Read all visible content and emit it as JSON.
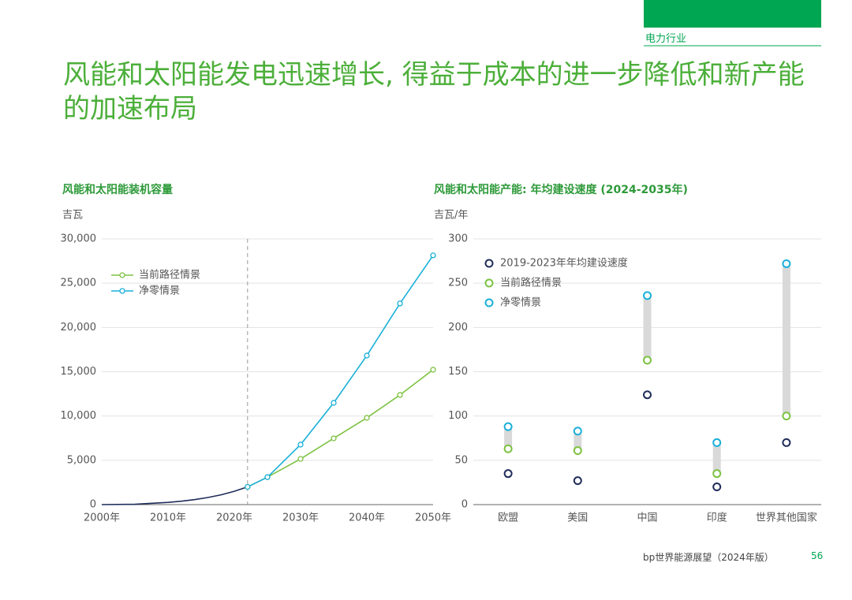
{
  "section": "电力行业",
  "title": "风能和太阳能发电迅速增长, 得益于成本的进一步降低和新产能的加速布局",
  "footer": "bp世界能源展望（2024年版）",
  "page_number": 56,
  "chart_data": [
    {
      "type": "line",
      "title": "风能和太阳能装机容量",
      "y_label": "吉瓦",
      "x": [
        2000,
        2005,
        2010,
        2012,
        2014,
        2016,
        2018,
        2020,
        2022,
        2025,
        2030,
        2035,
        2040,
        2045,
        2050
      ],
      "xlim": [
        2000,
        2050
      ],
      "xticks": [
        {
          "value": 2000,
          "label": "2000年"
        },
        {
          "value": 2010,
          "label": "2010年"
        },
        {
          "value": 2020,
          "label": "2020年"
        },
        {
          "value": 2030,
          "label": "2030年"
        },
        {
          "value": 2040,
          "label": "2040年"
        },
        {
          "value": 2050,
          "label": "2050年"
        }
      ],
      "ylim": [
        0,
        30000
      ],
      "yticks": [
        0,
        {
          "value": 5000,
          "label": "5,000"
        },
        {
          "value": 10000,
          "label": "10,000"
        },
        {
          "value": 15000,
          "label": "15,000"
        },
        {
          "value": 20000,
          "label": "20,000"
        },
        {
          "value": 25000,
          "label": "25,000"
        },
        {
          "value": 30000,
          "label": "30,000"
        }
      ],
      "vline": 2022,
      "grid": true,
      "legend": "upper left",
      "series": [
        {
          "color": "#1f2d5a",
          "markers": false,
          "values": [
            0,
            40,
            250,
            380,
            560,
            800,
            1100,
            1500,
            2000,
            null,
            null,
            null,
            null,
            null,
            null
          ]
        },
        {
          "name": "当前路径情景",
          "color": "#7dc242",
          "markers": true,
          "values": [
            null,
            null,
            null,
            null,
            null,
            null,
            null,
            null,
            2000,
            3100,
            5160,
            7480,
            9800,
            12380,
            15230
          ]
        },
        {
          "name": "净零情景",
          "color": "#1ab0d8",
          "markers": true,
          "values": [
            null,
            null,
            null,
            null,
            null,
            null,
            null,
            null,
            2000,
            3100,
            6770,
            11490,
            16830,
            22710,
            28140
          ]
        }
      ]
    },
    {
      "type": "dot_range",
      "title": "风能和太阳能产能: 年均建设速度 (2024-2035年)",
      "y_label": "吉瓦/年",
      "categories": [
        "欧盟",
        "美国",
        "中国",
        "印度",
        "世界其他国家"
      ],
      "ylim": [
        0,
        300
      ],
      "yticks": [
        0,
        50,
        100,
        150,
        200,
        250,
        300
      ],
      "grid": true,
      "legend": "upper left",
      "range_color": "#d9d9d9",
      "series": [
        {
          "name": "2019-2023年年均建设速度",
          "color": "#1f2d5a",
          "values": [
            35,
            27,
            124,
            20,
            70
          ]
        },
        {
          "name": "当前路径情景",
          "color": "#7dc242",
          "values": [
            63,
            61,
            163,
            35,
            100
          ]
        },
        {
          "name": "净零情景",
          "color": "#1ab0d8",
          "values": [
            88,
            83,
            236,
            70,
            272
          ]
        }
      ]
    }
  ]
}
